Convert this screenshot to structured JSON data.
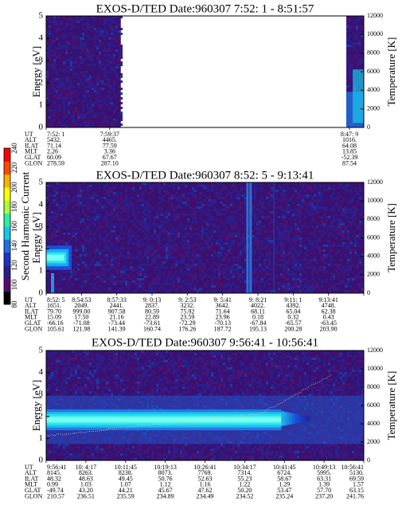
{
  "colorbar": {
    "label": "Second Harmonic Current",
    "ticks": [
      "80",
      "100",
      "120",
      "140",
      "160",
      "180",
      "200",
      "220",
      "240"
    ],
    "colors": [
      "#000000",
      "#5a0a6e",
      "#2a1f8c",
      "#1e32c8",
      "#1f6fe0",
      "#18c8e8",
      "#2af0a0",
      "#a8ff3a",
      "#ffff00",
      "#ffb000",
      "#ff4a00",
      "#ff0000"
    ]
  },
  "chart_data": [
    {
      "type": "heatmap",
      "title": "EXOS-D/TED   Date:960307  7:52: 1 - 8:51:57",
      "ylabel": "Energy [eV]",
      "y2label": "Temperature [K]",
      "ylim": [
        0,
        5
      ],
      "y2lim": [
        0,
        12000
      ],
      "yticks": [
        "0",
        "1",
        "2",
        "3",
        "4",
        "5"
      ],
      "y2ticks": [
        "0",
        "2000",
        "4000",
        "6000",
        "8000",
        "10000",
        "12000"
      ],
      "data_intervals": [
        [
          0,
          0.235
        ],
        [
          0.945,
          1.0
        ]
      ],
      "band": null,
      "vlines": [],
      "orbit": {
        "positions": [
          0.0,
          0.2,
          0.955
        ],
        "rows": [
          {
            "label": "UT",
            "values": [
              "7:52: 1",
              "7:59:37",
              "8:47: 9"
            ]
          },
          {
            "label": "ALT",
            "values": [
              "5432.",
              "4465.",
              "1016."
            ]
          },
          {
            "label": "ILAT",
            "values": [
              "71.14",
              "77.59",
              "64.08"
            ]
          },
          {
            "label": "MLT",
            "values": [
              "2.26",
              "3.36",
              "13.85"
            ]
          },
          {
            "label": "GLAT",
            "values": [
              "60.09",
              "67.67",
              "-52.39"
            ]
          },
          {
            "label": "GLON",
            "values": [
              "278.59",
              "287.10",
              "87.54"
            ]
          }
        ]
      }
    },
    {
      "type": "heatmap",
      "title": "EXOS-D/TED   Date:960307  8:52: 5 - 9:13:41",
      "ylabel": "Energy [eV]",
      "y2label": "Temperature [K]",
      "ylim": [
        0,
        5
      ],
      "y2lim": [
        0,
        12000
      ],
      "yticks": [
        "0",
        "1",
        "2",
        "3",
        "4",
        "5"
      ],
      "y2ticks": [
        "0",
        "2000",
        "4000",
        "6000",
        "8000",
        "10000",
        "12000"
      ],
      "data_intervals": [
        [
          0,
          1.0
        ]
      ],
      "band": {
        "kind": "early",
        "extent": [
          0,
          0.08
        ],
        "center": 1.6,
        "width": 1.1
      },
      "vlines": [
        0.635,
        0.645,
        0.72
      ],
      "orbit": {
        "positions": [
          0.0,
          0.1111,
          0.2222,
          0.3333,
          0.4444,
          0.5556,
          0.6667,
          0.7778,
          0.8889,
          1.0
        ],
        "rows": [
          {
            "label": "UT",
            "values": [
              "8:52: 5",
              "8:54:53",
              "8:57:33",
              "9: 0:13",
              "9: 2:53",
              "9: 5:41",
              "9: 8:21",
              "9:11: 1",
              "9:13:41",
              ""
            ]
          },
          {
            "label": "ALT",
            "values": [
              "1651.",
              "2049.",
              "2441.",
              "2837.",
              "3232.",
              "3642.",
              "4022.",
              "4392.",
              "4748.",
              ""
            ]
          },
          {
            "label": "ILAT",
            "values": [
              "79.70",
              "999.00",
              "907.58",
              "80.59",
              "75.92",
              "71.64",
              "68.11",
              "65.04",
              "62.38",
              ""
            ]
          },
          {
            "label": "MLT",
            "values": [
              "15.09",
              "17.50",
              "21.16",
              "22.89",
              "23.59",
              "23.96",
              "0.18",
              "0.32",
              "0.43",
              ""
            ]
          },
          {
            "label": "GLAT",
            "values": [
              "-66.16",
              "-71.08",
              "-73.44",
              "-73.61",
              "-72.29",
              "-70.13",
              "-67.84",
              "-65.57",
              "-63.45",
              ""
            ]
          },
          {
            "label": "GLON",
            "values": [
              "105.61",
              "121.98",
              "141.39",
              "160.74",
              "176.26",
              "187.72",
              "195.13",
              "200.28",
              "203.90",
              ""
            ]
          }
        ]
      }
    },
    {
      "type": "heatmap",
      "title": "EXOS-D/TED   Date:960307  9:56:41 - 10:56:41",
      "ylabel": "Energy [eV]",
      "y2label": "Temperature [K]",
      "ylim": [
        0,
        5
      ],
      "y2lim": [
        0,
        12000
      ],
      "yticks": [
        "0",
        "1",
        "2",
        "3",
        "4",
        "5"
      ],
      "y2ticks": [
        "0",
        "2000",
        "4000",
        "6000",
        "8000",
        "10000",
        "12000"
      ],
      "data_intervals": [
        [
          0,
          1.0
        ]
      ],
      "band": {
        "kind": "long",
        "extent": [
          0,
          0.74
        ],
        "center": 1.85,
        "width": 0.95
      },
      "vlines": [],
      "orbit": {
        "positions": [
          0.0,
          0.125,
          0.25,
          0.375,
          0.5,
          0.625,
          0.75,
          0.875,
          1.0
        ],
        "rows": [
          {
            "label": "UT",
            "values": [
              "9:56:41",
              "10: 4:17",
              "10:11:45",
              "10:19:13",
              "10:26:41",
              "10:34:17",
              "10:41:45",
              "10:49:13",
              "10:56:41"
            ]
          },
          {
            "label": "ALT",
            "values": [
              "8145.",
              "8263.",
              "8238.",
              "8073.",
              "7769.",
              "7314.",
              "6724.",
              "5995.",
              "5130."
            ]
          },
          {
            "label": "ILAT",
            "values": [
              "48.32",
              "48.63",
              "49.45",
              "50.76",
              "52.63",
              "55.23",
              "58.67",
              "63.31",
              "69.59"
            ]
          },
          {
            "label": "MLT",
            "values": [
              "0.99",
              "1.03",
              "1.07",
              "1.12",
              "1.16",
              "1.22",
              "1.29",
              "1.39",
              "1.57"
            ]
          },
          {
            "label": "GLAT",
            "values": [
              "-49.74",
              "43.20",
              "44.21",
              "45.67",
              "47.62",
              "50.20",
              "53.47",
              "57.70",
              "63.15"
            ]
          },
          {
            "label": "GLON",
            "values": [
              "210.57",
              "236.51",
              "235.59",
              "234.89",
              "234.49",
              "234.52",
              "235.24",
              "237.20",
              "241.76"
            ]
          }
        ]
      }
    }
  ]
}
